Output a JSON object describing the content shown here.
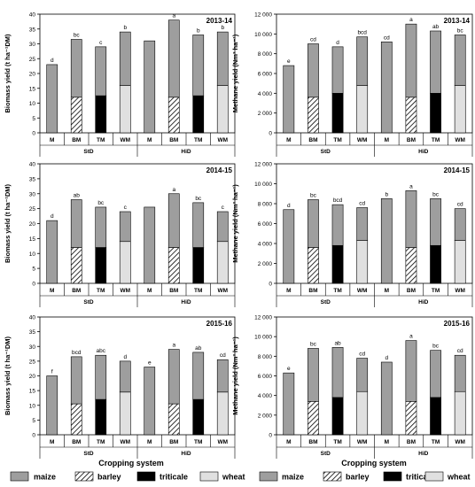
{
  "figure": {
    "xlabel": "Cropping system",
    "legend": [
      {
        "key": "maize",
        "label": "maize"
      },
      {
        "key": "barley",
        "label": "barley"
      },
      {
        "key": "triticale",
        "label": "triticale"
      },
      {
        "key": "wheat",
        "label": "wheat"
      }
    ]
  },
  "colors": {
    "maize": "#9e9e9e",
    "barley": "#ffffff",
    "triticale": "#000000",
    "wheat": "#e0e0e0",
    "axis": "#000000"
  },
  "chart_data": [
    {
      "type": "bar",
      "stacked": true,
      "title": "2013-14",
      "ylabel": "Biomass yield (t ha⁻¹DM)",
      "ylim": [
        0,
        40
      ],
      "yticks": [
        "0",
        "5",
        "10",
        "15",
        "20",
        "25",
        "30",
        "35",
        "40"
      ],
      "categories": [
        "M",
        "BM",
        "TM",
        "WM",
        "M",
        "BM",
        "TM",
        "WM"
      ],
      "groups": [
        "StD",
        "HiD"
      ],
      "series": [
        {
          "name": "barley",
          "values": [
            0,
            12,
            0,
            0,
            0,
            12,
            0,
            0
          ]
        },
        {
          "name": "triticale",
          "values": [
            0,
            0,
            12.5,
            0,
            0,
            0,
            12.5,
            0
          ]
        },
        {
          "name": "wheat",
          "values": [
            0,
            0,
            0,
            16,
            0,
            0,
            0,
            16
          ]
        },
        {
          "name": "maize",
          "values": [
            23,
            19.5,
            16.5,
            18,
            31,
            26,
            20.5,
            18
          ]
        }
      ],
      "letters": [
        "d",
        "bc",
        "c",
        "b",
        "",
        "a",
        "b",
        "b"
      ]
    },
    {
      "type": "bar",
      "stacked": true,
      "title": "2013-14",
      "ylabel": "Methane yield (Nm³ ha⁻¹)",
      "ylim": [
        0,
        12000
      ],
      "yticks": [
        "0",
        "2 000",
        "4 000",
        "6 000",
        "8 000",
        "10 000",
        "12 000"
      ],
      "categories": [
        "M",
        "BM",
        "TM",
        "WM",
        "M",
        "BM",
        "TM",
        "WM"
      ],
      "groups": [
        "StD",
        "HiD"
      ],
      "series": [
        {
          "name": "barley",
          "values": [
            0,
            3600,
            0,
            0,
            0,
            3600,
            0,
            0
          ]
        },
        {
          "name": "triticale",
          "values": [
            0,
            0,
            4000,
            0,
            0,
            0,
            4000,
            0
          ]
        },
        {
          "name": "wheat",
          "values": [
            0,
            0,
            0,
            4800,
            0,
            0,
            0,
            4800
          ]
        },
        {
          "name": "maize",
          "values": [
            6800,
            5400,
            4700,
            4900,
            9200,
            7400,
            6300,
            5100
          ]
        }
      ],
      "letters": [
        "e",
        "cd",
        "d",
        "bcd",
        "cd",
        "a",
        "ab",
        "bc"
      ]
    },
    {
      "type": "bar",
      "stacked": true,
      "title": "2014-15",
      "ylabel": "Biomass yield (t ha⁻¹DM)",
      "ylim": [
        0,
        40
      ],
      "yticks": [
        "0",
        "5",
        "10",
        "15",
        "20",
        "25",
        "30",
        "35",
        "40"
      ],
      "categories": [
        "M",
        "BM",
        "TM",
        "WM",
        "M",
        "BM",
        "TM",
        "WM"
      ],
      "groups": [
        "StD",
        "HiD"
      ],
      "series": [
        {
          "name": "barley",
          "values": [
            0,
            12,
            0,
            0,
            0,
            12,
            0,
            0
          ]
        },
        {
          "name": "triticale",
          "values": [
            0,
            0,
            12,
            0,
            0,
            0,
            12,
            0
          ]
        },
        {
          "name": "wheat",
          "values": [
            0,
            0,
            0,
            14,
            0,
            0,
            0,
            14
          ]
        },
        {
          "name": "maize",
          "values": [
            21,
            16,
            13.5,
            10,
            25.5,
            18,
            15,
            10
          ]
        }
      ],
      "letters": [
        "d",
        "ab",
        "bc",
        "c",
        "",
        "a",
        "bc",
        "c"
      ]
    },
    {
      "type": "bar",
      "stacked": true,
      "title": "2014-15",
      "ylabel": "Methane yield (Nm³ ha⁻¹)",
      "ylim": [
        0,
        12000
      ],
      "yticks": [
        "0",
        "2 000",
        "4 000",
        "6 000",
        "8 000",
        "10 000",
        "12 000"
      ],
      "categories": [
        "M",
        "BM",
        "TM",
        "WM",
        "M",
        "BM",
        "TM",
        "WM"
      ],
      "groups": [
        "StD",
        "HiD"
      ],
      "series": [
        {
          "name": "barley",
          "values": [
            0,
            3600,
            0,
            0,
            0,
            3600,
            0,
            0
          ]
        },
        {
          "name": "triticale",
          "values": [
            0,
            0,
            3800,
            0,
            0,
            0,
            3800,
            0
          ]
        },
        {
          "name": "wheat",
          "values": [
            0,
            0,
            0,
            4300,
            0,
            0,
            0,
            4300
          ]
        },
        {
          "name": "maize",
          "values": [
            7400,
            4800,
            4100,
            3300,
            8500,
            5700,
            4700,
            3200
          ]
        }
      ],
      "letters": [
        "d",
        "bc",
        "bcd",
        "cd",
        "b",
        "a",
        "bc",
        "cd"
      ]
    },
    {
      "type": "bar",
      "stacked": true,
      "title": "2015-16",
      "ylabel": "Biomass yield (t ha⁻¹DM)",
      "ylim": [
        0,
        40
      ],
      "yticks": [
        "0",
        "5",
        "10",
        "15",
        "20",
        "25",
        "30",
        "35",
        "40"
      ],
      "categories": [
        "M",
        "BM",
        "TM",
        "WM",
        "M",
        "BM",
        "TM",
        "WM"
      ],
      "groups": [
        "StD",
        "HiD"
      ],
      "series": [
        {
          "name": "barley",
          "values": [
            0,
            10.5,
            0,
            0,
            0,
            10.5,
            0,
            0
          ]
        },
        {
          "name": "triticale",
          "values": [
            0,
            0,
            12,
            0,
            0,
            0,
            12,
            0
          ]
        },
        {
          "name": "wheat",
          "values": [
            0,
            0,
            0,
            14.5,
            0,
            0,
            0,
            14.5
          ]
        },
        {
          "name": "maize",
          "values": [
            20,
            16,
            15,
            10.5,
            23,
            18.5,
            16,
            11
          ]
        }
      ],
      "letters": [
        "f",
        "bcd",
        "abc",
        "d",
        "e",
        "a",
        "ab",
        "cd"
      ]
    },
    {
      "type": "bar",
      "stacked": true,
      "title": "2015-16",
      "ylabel": "Methane yield (Nm³ ha⁻¹)",
      "ylim": [
        0,
        12000
      ],
      "yticks": [
        "0",
        "2 000",
        "4 000",
        "6 000",
        "8 000",
        "10 000",
        "12 000"
      ],
      "categories": [
        "M",
        "BM",
        "TM",
        "WM",
        "M",
        "BM",
        "TM",
        "WM"
      ],
      "groups": [
        "StD",
        "HiD"
      ],
      "series": [
        {
          "name": "barley",
          "values": [
            0,
            3400,
            0,
            0,
            0,
            3400,
            0,
            0
          ]
        },
        {
          "name": "triticale",
          "values": [
            0,
            0,
            3800,
            0,
            0,
            0,
            3800,
            0
          ]
        },
        {
          "name": "wheat",
          "values": [
            0,
            0,
            0,
            4400,
            0,
            0,
            0,
            4400
          ]
        },
        {
          "name": "maize",
          "values": [
            6300,
            5400,
            5100,
            3400,
            7400,
            6200,
            4800,
            3700
          ]
        }
      ],
      "letters": [
        "e",
        "bc",
        "ab",
        "cd",
        "d",
        "a",
        "bc",
        "cd"
      ]
    }
  ]
}
